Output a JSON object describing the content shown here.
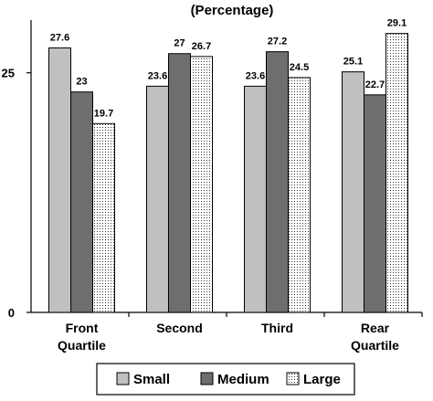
{
  "chart_data": {
    "type": "bar",
    "title": "(Percentage)",
    "categories": [
      [
        "Front",
        "Quartile"
      ],
      [
        "Second"
      ],
      [
        "Third"
      ],
      [
        "Rear",
        "Quartile"
      ]
    ],
    "series": [
      {
        "name": "Small",
        "values": [
          27.6,
          23.6,
          23.6,
          25.1
        ],
        "color": "#c0c0c0",
        "pattern": "solid"
      },
      {
        "name": "Medium",
        "values": [
          23,
          27,
          27.2,
          22.7
        ],
        "color": "#6e6e6e",
        "pattern": "solid"
      },
      {
        "name": "Large",
        "values": [
          19.7,
          26.7,
          24.5,
          29.1
        ],
        "color": "#ffffff",
        "pattern": "dots"
      }
    ],
    "yticks": [
      "0",
      "25"
    ],
    "ylim": [
      0,
      30.5
    ],
    "grid": false,
    "legend_position": "bottom"
  }
}
